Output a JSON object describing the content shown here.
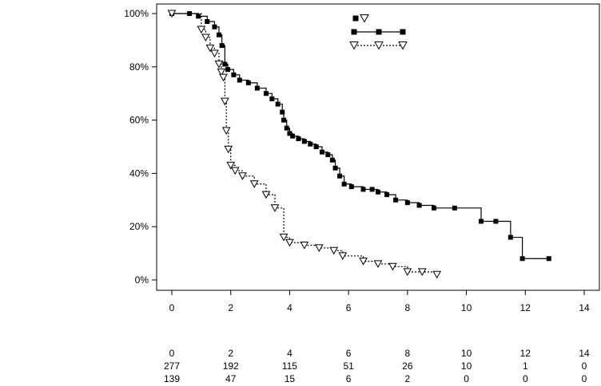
{
  "chart_data": {
    "type": "line",
    "title": "",
    "xlabel": "",
    "ylabel": "",
    "xlim": [
      0,
      14
    ],
    "ylim": [
      0,
      100
    ],
    "x_ticks": [
      "0",
      "2",
      "4",
      "6",
      "8",
      "10",
      "12",
      "14"
    ],
    "y_ticks": [
      "0%",
      "20%",
      "40%",
      "60%",
      "80%",
      "100%"
    ],
    "y_ticks_values": [
      0,
      20,
      40,
      60,
      80,
      100
    ],
    "x_ticks_values": [
      0,
      2,
      4,
      6,
      8,
      10,
      12,
      14
    ],
    "grid": false,
    "legend_position": "top-right",
    "series": [
      {
        "marker": "square",
        "line_style": "solid",
        "color": "#000000",
        "x": [
          0,
          0.6,
          0.9,
          1.2,
          1.45,
          1.6,
          1.7,
          1.8,
          1.9,
          2.1,
          2.3,
          2.6,
          2.9,
          3.2,
          3.4,
          3.6,
          3.75,
          3.8,
          3.9,
          4.0,
          4.1,
          4.3,
          4.5,
          4.7,
          4.9,
          5.1,
          5.3,
          5.45,
          5.55,
          5.7,
          5.85,
          6.1,
          6.5,
          6.8,
          7.0,
          7.3,
          7.6,
          8.0,
          8.4,
          8.9,
          9.6,
          10.5,
          11.0,
          11.5,
          11.9,
          12.8
        ],
        "values": [
          100,
          100,
          99,
          97,
          95,
          92,
          88,
          81,
          79,
          77,
          75,
          74,
          72,
          70,
          68,
          66,
          63,
          60,
          57,
          55,
          54,
          53,
          52,
          51,
          50,
          48,
          47,
          45,
          42,
          39,
          36,
          35,
          34,
          34,
          33,
          32,
          30,
          29,
          28,
          27,
          27,
          22,
          22,
          16,
          8,
          8
        ]
      },
      {
        "marker": "triangle-down-open",
        "line_style": "dotted",
        "color": "#000000",
        "x": [
          0,
          1.0,
          1.15,
          1.3,
          1.45,
          1.6,
          1.68,
          1.75,
          1.8,
          1.85,
          1.92,
          2.0,
          2.15,
          2.4,
          2.8,
          3.2,
          3.5,
          3.8,
          4.0,
          4.5,
          5.0,
          5.5,
          5.8,
          6.5,
          7.0,
          7.5,
          8.0,
          8.5,
          9.0
        ],
        "values": [
          100,
          94,
          91,
          87,
          85,
          81,
          78,
          76,
          67,
          56,
          49,
          43,
          41,
          39,
          36,
          32,
          27,
          16,
          14,
          13,
          12,
          11,
          9,
          7,
          6,
          5,
          3,
          3,
          2
        ]
      }
    ],
    "risk_table": {
      "times": [
        "0",
        "2",
        "4",
        "6",
        "8",
        "10",
        "12",
        "14"
      ],
      "rows": [
        [
          "277",
          "192",
          "115",
          "51",
          "26",
          "10",
          "1",
          "0"
        ],
        [
          "139",
          "47",
          "15",
          "6",
          "2",
          "0",
          "0",
          "0"
        ]
      ]
    }
  }
}
